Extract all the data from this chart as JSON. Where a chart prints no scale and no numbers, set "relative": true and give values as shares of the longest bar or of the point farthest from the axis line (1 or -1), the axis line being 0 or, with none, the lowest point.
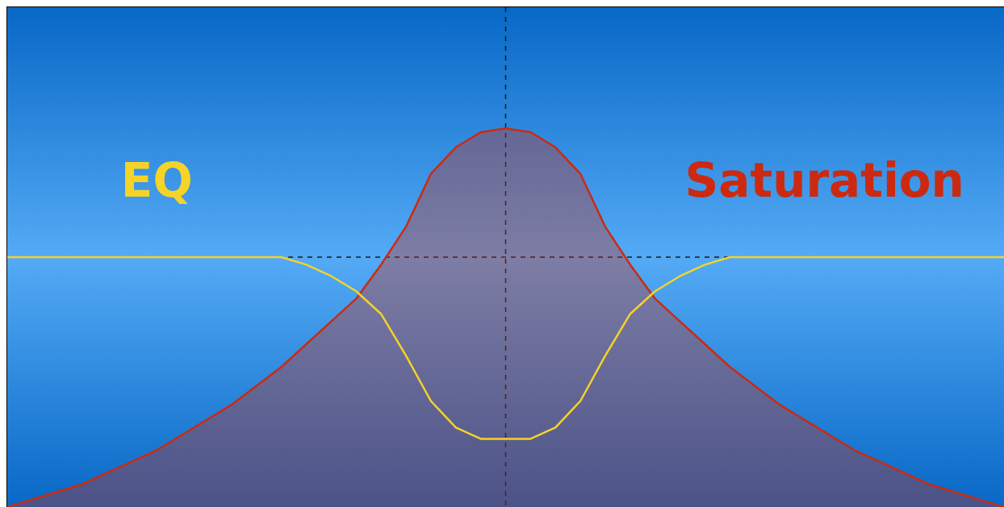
{
  "chart_data": {
    "type": "line",
    "relative": true,
    "legend": false,
    "marker": "none",
    "categories": [
      null,
      null,
      null,
      null,
      null,
      null,
      null,
      null,
      null,
      null,
      null,
      null,
      null,
      null,
      null,
      null,
      null,
      null,
      null,
      null,
      null,
      null,
      null,
      null,
      null,
      null,
      null,
      null,
      null,
      null,
      null,
      null,
      null,
      null,
      null,
      null,
      null,
      null,
      null,
      null,
      null
    ],
    "series": [
      {
        "name": "Saturation",
        "type": "area",
        "color": "#cc2a10",
        "values": [
          0,
          0.02,
          0.04,
          0.06,
          0.09,
          0.12,
          0.15,
          0.19,
          0.23,
          0.27,
          0.32,
          0.37,
          0.43,
          0.49,
          0.55,
          0.64,
          0.74,
          0.88,
          0.95,
          0.99,
          1,
          0.99,
          0.95,
          0.88,
          0.74,
          0.64,
          0.55,
          0.49,
          0.43,
          0.37,
          0.32,
          0.27,
          0.23,
          0.19,
          0.15,
          0.12,
          0.09,
          0.06,
          0.04,
          0.02,
          0
        ]
      },
      {
        "name": "EQ",
        "color": "#f5d327",
        "values": [
          0.66,
          0.66,
          0.66,
          0.66,
          0.66,
          0.66,
          0.66,
          0.66,
          0.66,
          0.66,
          0.66,
          0.66,
          0.64,
          0.61,
          0.57,
          0.51,
          0.4,
          0.28,
          0.21,
          0.18,
          0.18,
          0.18,
          0.21,
          0.28,
          0.4,
          0.51,
          0.57,
          0.61,
          0.64,
          0.66,
          0.66,
          0.66,
          0.66,
          0.66,
          0.66,
          0.66,
          0.66,
          0.66,
          0.66,
          0.66,
          0.66
        ]
      }
    ],
    "ref_lines": [
      {
        "axis": "y",
        "value": 0.66,
        "line_style": "dashed",
        "color": "#1a1a1a"
      }
    ]
  }
}
